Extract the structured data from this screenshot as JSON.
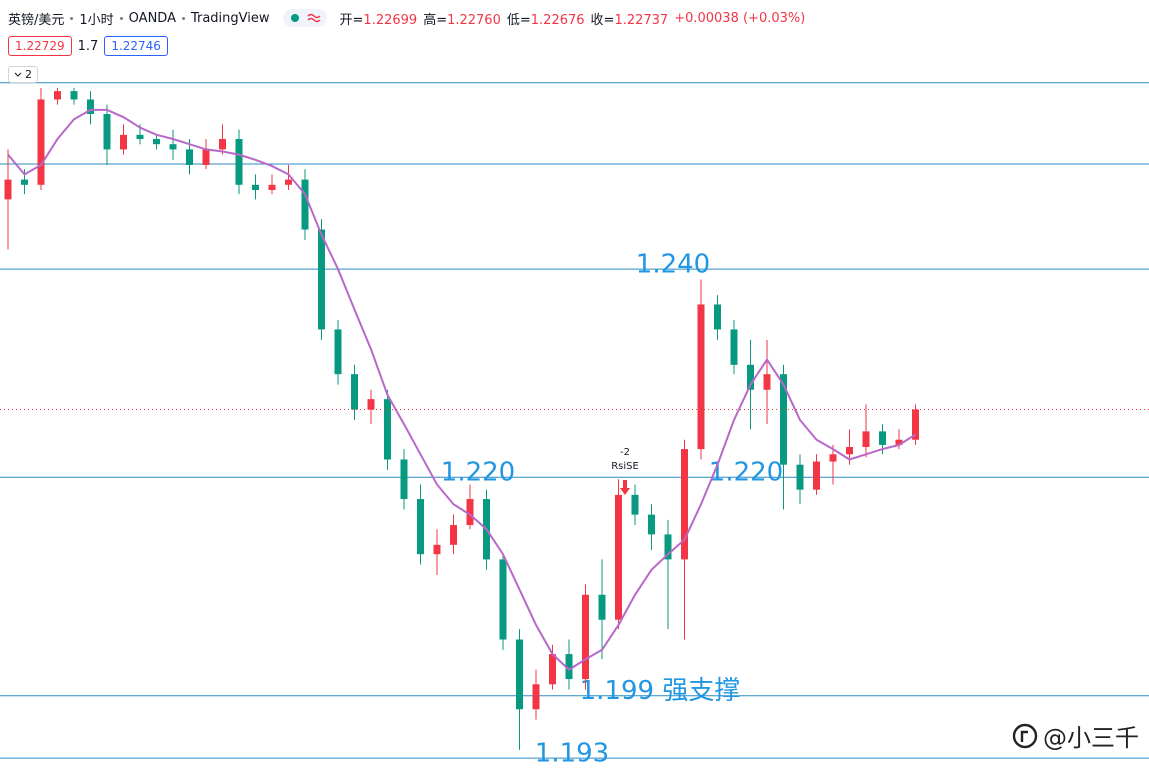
{
  "header": {
    "symbol": "英镑/美元",
    "interval": "1小时",
    "source": "OANDA",
    "platform": "TradingView",
    "ohlc": [
      {
        "label": "开=",
        "value": "1.22699"
      },
      {
        "label": "高=",
        "value": "1.22760"
      },
      {
        "label": "低=",
        "value": "1.22676"
      },
      {
        "label": "收=",
        "value": "1.22737"
      }
    ],
    "change": "+0.00038 (+0.03%)",
    "bid": "1.22729",
    "spread": "1.7",
    "ask": "1.22746",
    "indicator_count": "2"
  },
  "chart_data": {
    "type": "candlestick",
    "ylim": [
      1.1909,
      1.2599
    ],
    "up_color": "#f23645",
    "down_color": "#089981",
    "last_price_line": true,
    "candles": {
      "open": [
        1.2467,
        1.2486,
        1.2481,
        1.2563,
        1.2571,
        1.2563,
        1.2549,
        1.2515,
        1.2529,
        1.2525,
        1.252,
        1.2515,
        1.25,
        1.2515,
        1.2525,
        1.2481,
        1.2476,
        1.2481,
        1.2486,
        1.2438,
        1.2342,
        1.2299,
        1.2265,
        1.2275,
        1.2217,
        1.2179,
        1.2126,
        1.2135,
        1.2154,
        1.2179,
        1.2121,
        1.2044,
        1.1977,
        1.2001,
        1.203,
        1.2006,
        1.2087,
        1.2063,
        1.2183,
        1.2164,
        1.2145,
        1.2121,
        1.2227,
        1.2366,
        1.2342,
        1.2308,
        1.2284,
        1.2299,
        1.2212,
        1.2188,
        1.2215,
        1.2222,
        1.2229,
        1.2244,
        1.2231,
        1.2236
      ],
      "high": [
        1.2515,
        1.2496,
        1.2574,
        1.2574,
        1.2574,
        1.2571,
        1.2558,
        1.2539,
        1.2539,
        1.2529,
        1.2534,
        1.2525,
        1.2525,
        1.2539,
        1.2534,
        1.2491,
        1.2491,
        1.25,
        1.2496,
        1.2448,
        1.2351,
        1.2308,
        1.2284,
        1.2284,
        1.2227,
        1.2193,
        1.215,
        1.2164,
        1.2193,
        1.2188,
        1.2126,
        1.2054,
        1.2015,
        1.2039,
        1.2044,
        1.2097,
        1.2121,
        1.2198,
        1.2193,
        1.2174,
        1.2159,
        1.2236,
        1.239,
        1.2375,
        1.2351,
        1.2332,
        1.2332,
        1.2308,
        1.2222,
        1.2222,
        1.2231,
        1.2246,
        1.227,
        1.2251,
        1.2246,
        1.227
      ],
      "low": [
        1.2419,
        1.2472,
        1.2476,
        1.2558,
        1.2558,
        1.2539,
        1.25,
        1.251,
        1.252,
        1.2515,
        1.2505,
        1.2491,
        1.2496,
        1.251,
        1.2472,
        1.2467,
        1.2472,
        1.2476,
        1.2428,
        1.2332,
        1.2289,
        1.2255,
        1.2251,
        1.2207,
        1.2169,
        1.2116,
        1.2106,
        1.2126,
        1.215,
        1.2111,
        1.2034,
        1.1938,
        1.1967,
        1.1996,
        1.1996,
        1.1996,
        1.2025,
        1.2054,
        1.2154,
        1.213,
        1.2054,
        1.2044,
        1.2217,
        1.2332,
        1.2299,
        1.2246,
        1.2251,
        1.2169,
        1.2174,
        1.2183,
        1.2193,
        1.2212,
        1.2219,
        1.2222,
        1.2227,
        1.2231
      ],
      "close": [
        1.2486,
        1.2481,
        1.2563,
        1.2571,
        1.2563,
        1.2549,
        1.2515,
        1.2529,
        1.2525,
        1.252,
        1.2515,
        1.25,
        1.2515,
        1.2525,
        1.2481,
        1.2476,
        1.2481,
        1.2486,
        1.2438,
        1.2342,
        1.2299,
        1.2265,
        1.2275,
        1.2217,
        1.2179,
        1.2126,
        1.2135,
        1.2154,
        1.2179,
        1.2121,
        1.2044,
        1.1977,
        1.2001,
        1.203,
        1.2006,
        1.2087,
        1.2063,
        1.2183,
        1.2164,
        1.2145,
        1.2121,
        1.2227,
        1.2366,
        1.2342,
        1.2308,
        1.2284,
        1.2299,
        1.2212,
        1.2188,
        1.2215,
        1.2222,
        1.2229,
        1.2244,
        1.2231,
        1.2236,
        1.2265
      ]
    },
    "ma": {
      "color": "#b868c8",
      "values": [
        1.251,
        1.2491,
        1.25,
        1.2525,
        1.2544,
        1.2553,
        1.2553,
        1.2546,
        1.2536,
        1.2529,
        1.2525,
        1.252,
        1.2515,
        1.2513,
        1.251,
        1.2505,
        1.2499,
        1.2491,
        1.2472,
        1.2433,
        1.24,
        1.2361,
        1.2323,
        1.2279,
        1.2251,
        1.2222,
        1.2193,
        1.2174,
        1.2164,
        1.215,
        1.2126,
        1.2092,
        1.2058,
        1.203,
        1.2015,
        1.2025,
        1.2034,
        1.2058,
        1.2087,
        1.2111,
        1.2126,
        1.214,
        1.2174,
        1.2212,
        1.2255,
        1.2289,
        1.2313,
        1.2289,
        1.2255,
        1.2236,
        1.2227,
        1.2217,
        1.2222,
        1.2227,
        1.2231,
        1.2241
      ]
    },
    "level_color": "#2a8cc4",
    "levels": [
      1.2579,
      1.2501,
      {
        "value": 1.24,
        "label": "1.240"
      },
      {
        "value": 1.22,
        "labels": [
          "1.220",
          "1.220"
        ]
      },
      {
        "value": 1.199,
        "label": "1.199 强支撑"
      },
      {
        "value": 1.193,
        "label": "1.193"
      }
    ],
    "signal": {
      "value": "-2",
      "name": "RsiSE"
    }
  },
  "watermark": "@小三千"
}
